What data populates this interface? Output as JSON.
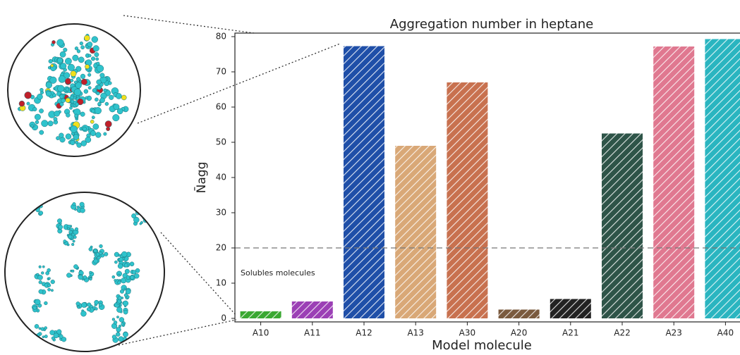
{
  "chart_data": {
    "type": "bar",
    "title": "Aggregation number in heptane",
    "xlabel": "Model molecule",
    "ylabel": "N̄agg",
    "categories": [
      "A10",
      "A11",
      "A12",
      "A13",
      "A30",
      "A20",
      "A21",
      "A22",
      "A23",
      "A40"
    ],
    "values": [
      2,
      4.8,
      77.3,
      49,
      67,
      2.5,
      5.5,
      52.5,
      77.2,
      79.3
    ],
    "colors": [
      "#3aa832",
      "#9b3fb5",
      "#1f4fa8",
      "#d9a877",
      "#c8714f",
      "#7a5a3e",
      "#222222",
      "#2e5448",
      "#e07890",
      "#2ab5c0"
    ],
    "ylim": [
      -1,
      81
    ],
    "yticks": [
      0,
      10,
      20,
      30,
      40,
      50,
      60,
      70,
      80
    ],
    "hline": 20,
    "annotation": "Solubles molecules",
    "hatch": true
  }
}
